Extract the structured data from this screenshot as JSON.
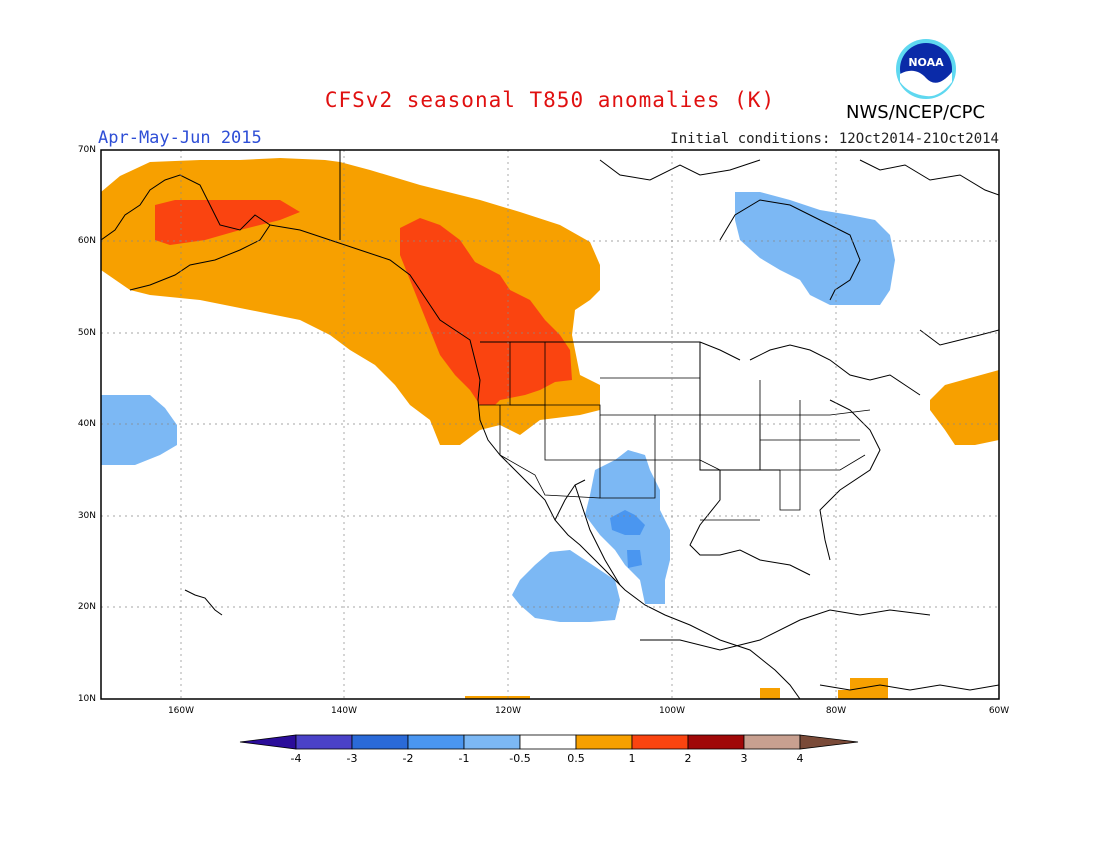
{
  "header": {
    "title": "CFSv2 seasonal T850 anomalies (K)",
    "agency": "NWS/NCEP/CPC",
    "season": "Apr-May-Jun 2015",
    "initial_conditions": "Initial conditions: 12Oct2014-21Oct2014"
  },
  "logo": {
    "text": "NOAA"
  },
  "map": {
    "lat_labels": [
      "70N",
      "60N",
      "50N",
      "40N",
      "30N",
      "20N",
      "10N"
    ],
    "lon_labels": [
      "160W",
      "140W",
      "120W",
      "100W",
      "80W",
      "60W"
    ]
  },
  "colorbar": {
    "labels": [
      "-4",
      "-3",
      "-2",
      "-1",
      "-0.5",
      "0.5",
      "1",
      "2",
      "3",
      "4"
    ],
    "colors": [
      "#2b0d9a",
      "#4a42c8",
      "#2a6ad8",
      "#4a96f0",
      "#7cb8f4",
      "#ffffff",
      "#f7a000",
      "#fa4410",
      "#a00808",
      "#c8a090",
      "#7a4a38"
    ]
  },
  "colors": {
    "anomaly_pos_1": "#f7a000",
    "anomaly_pos_2": "#fa4410",
    "anomaly_neg_1": "#7cb8f4",
    "anomaly_neg_2": "#4a96f0"
  }
}
